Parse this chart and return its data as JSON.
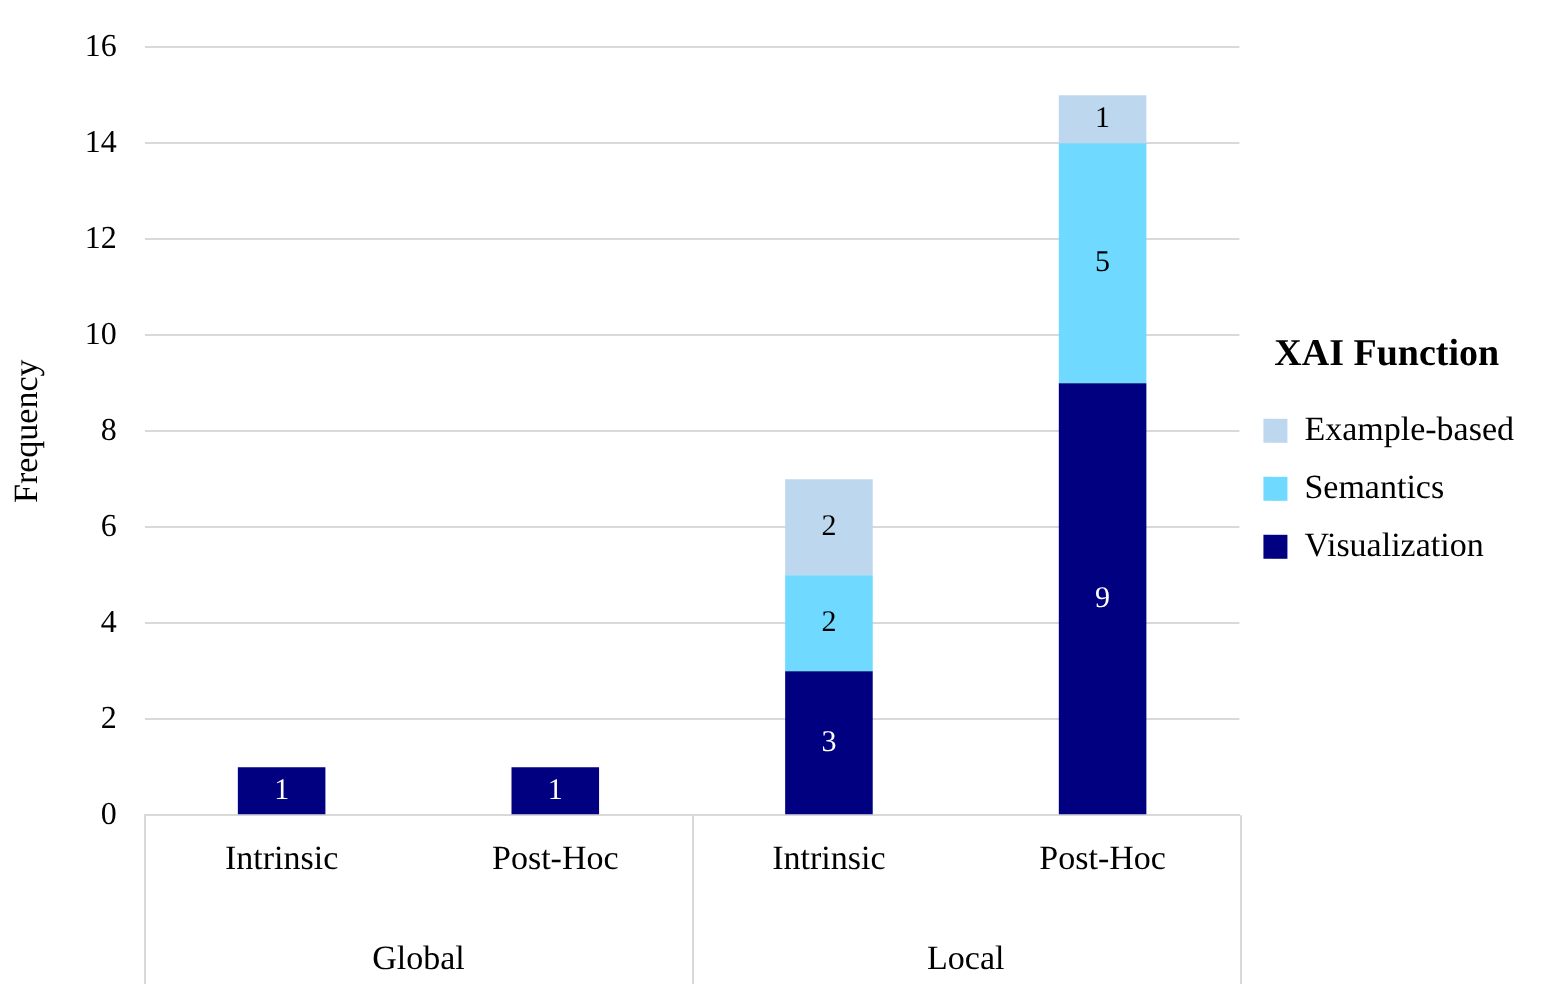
{
  "chart_data": {
    "type": "bar",
    "stacked": true,
    "ylabel": "Frequency",
    "legend_title": "XAI Function",
    "legend": "right",
    "categories": [
      "Intrinsic",
      "Post-Hoc",
      "Intrinsic",
      "Post-Hoc"
    ],
    "annotations": [
      "Global",
      "Local"
    ],
    "series": [
      {
        "name": "Visualization",
        "color": "#000080",
        "values": [
          1,
          1,
          3,
          9
        ]
      },
      {
        "name": "Semantics",
        "color": "#6fd9ff",
        "values": [
          null,
          null,
          2,
          5
        ]
      },
      {
        "name": "Example-based",
        "color": "#bdd7ee",
        "values": [
          null,
          null,
          2,
          1
        ]
      }
    ],
    "ylim": [
      0,
      16
    ],
    "yticks": [
      0,
      2,
      4,
      6,
      8,
      10,
      12,
      14,
      16
    ],
    "grid": "y",
    "data_labels": true
  }
}
